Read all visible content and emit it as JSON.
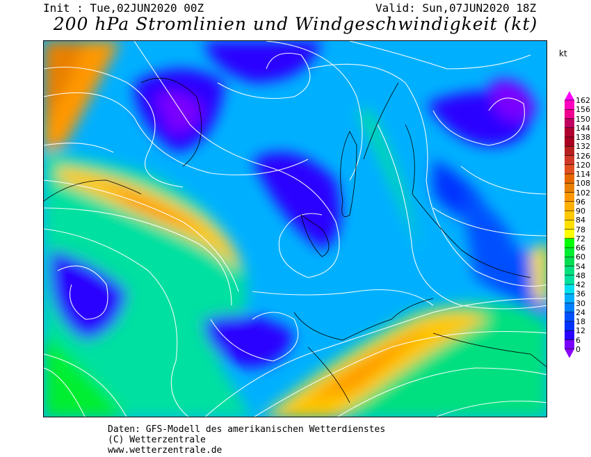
{
  "header": {
    "init": "Init : Tue,02JUN2020 00Z",
    "valid": "Valid: Sun,07JUN2020 18Z",
    "title": "200 hPa Stromlinien und Windgeschwindigkeit (kt)"
  },
  "legend": {
    "unit": "kt",
    "ticks": [
      "162",
      "156",
      "150",
      "144",
      "138",
      "132",
      "126",
      "120",
      "114",
      "108",
      "102",
      "96",
      "90",
      "84",
      "78",
      "72",
      "66",
      "60",
      "54",
      "48",
      "42",
      "36",
      "30",
      "24",
      "18",
      "12",
      "6",
      "0"
    ],
    "colors": [
      "#ff00ff",
      "#ff00c0",
      "#f00090",
      "#c00060",
      "#b00030",
      "#a80020",
      "#b82020",
      "#d03828",
      "#e05020",
      "#e86800",
      "#e88000",
      "#ff9800",
      "#ffb000",
      "#ffc800",
      "#ffe000",
      "#ffff00",
      "#00ff00",
      "#00ee30",
      "#00dd50",
      "#00e080",
      "#00e0a0",
      "#00e0f0",
      "#00b0ff",
      "#0080ff",
      "#0050ff",
      "#0032ff",
      "#2a00ff",
      "#7a00ff",
      "#8a00ff"
    ]
  },
  "footer": {
    "line1": "Daten: GFS-Modell des amerikanischen Wetterdienstes",
    "line2": "(C) Wetterzentrale",
    "line3": "www.wetterzentrale.de"
  }
}
